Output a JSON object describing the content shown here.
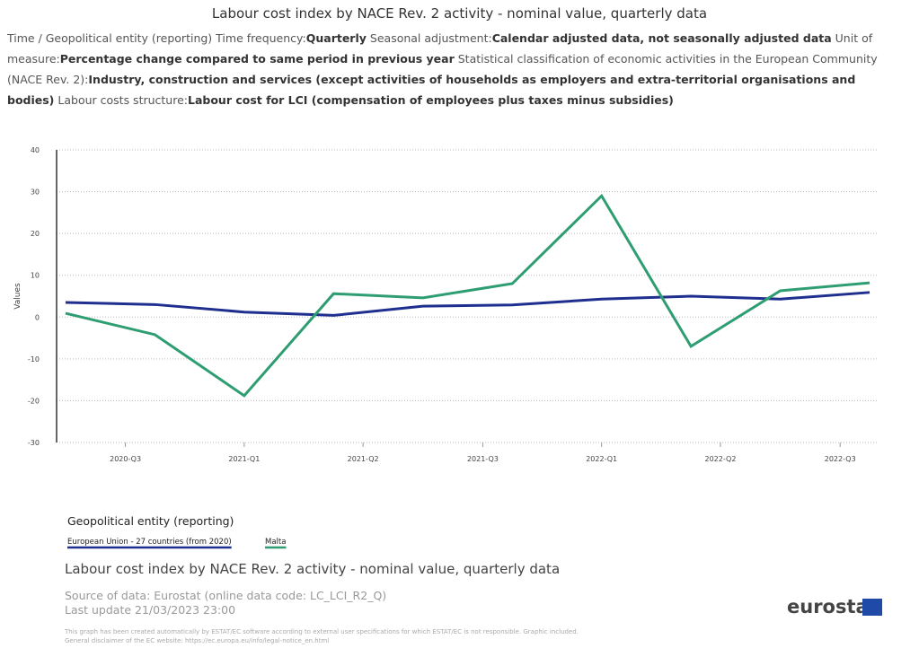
{
  "chart_data": {
    "type": "line",
    "title": "Labour cost index by NACE Rev. 2 activity - nominal value, quarterly data",
    "subtitle_lead": "Time / Geopolitical entity (reporting)",
    "filters": [
      {
        "label": "Time frequency:",
        "value": "Quarterly"
      },
      {
        "label": "Seasonal adjustment:",
        "value": "Calendar adjusted data, not seasonally adjusted data"
      },
      {
        "label": "Unit of measure:",
        "value": "Percentage change compared to same period in previous year"
      },
      {
        "label": "Statistical classification of economic activities in the European Community (NACE Rev. 2):",
        "value": "Industry, construction and services (except activities of households as employers and extra-territorial organisations and bodies)"
      },
      {
        "label": "Labour costs structure:",
        "value": "Labour cost for LCI (compensation of employees plus taxes minus subsidies)"
      }
    ],
    "y_label": "Values",
    "x": [
      0,
      1,
      2,
      3,
      4,
      5,
      6,
      7,
      8,
      9
    ],
    "xlim": [
      -0.1,
      9.1
    ],
    "xticks": [
      {
        "value": 0.67,
        "label": "2020-Q3"
      },
      {
        "value": 2,
        "label": "2021-Q1"
      },
      {
        "value": 3.33,
        "label": "2021-Q2"
      },
      {
        "value": 4.67,
        "label": "2021-Q3"
      },
      {
        "value": 6,
        "label": "2022-Q1"
      },
      {
        "value": 7.33,
        "label": "2022-Q2"
      },
      {
        "value": 8.67,
        "label": "2022-Q3"
      }
    ],
    "ylim": [
      -30,
      40
    ],
    "yticks": [
      40,
      30,
      20,
      10,
      0,
      -10,
      -20,
      -30
    ],
    "grid": true,
    "legend_title": "Geopolitical entity (reporting)",
    "series": [
      {
        "name": "European Union - 27 countries (from 2020)",
        "color": "#1f2f8f",
        "values": [
          3.5,
          3.0,
          1.2,
          0.4,
          2.6,
          2.9,
          4.3,
          5.0,
          4.3,
          5.9
        ]
      },
      {
        "name": "Malta",
        "color": "#2e9e72",
        "values": [
          0.9,
          -4.2,
          -18.8,
          5.6,
          4.6,
          8.0,
          29.0,
          -7.0,
          6.3,
          8.2
        ]
      }
    ],
    "footer_title": "Labour cost index by NACE Rev. 2 activity - nominal value, quarterly data",
    "source": "Source of data: Eurostat (online data code: LC_LCI_R2_Q)",
    "last_update": "Last update 21/03/2023 23:00",
    "disclaimer": [
      "This graph has been created automatically by ESTAT/EC software according to external user specifications for which ESTAT/EC is not responsible. Graphic included.",
      "General disclaimer of the EC website: https://ec.europa.eu/info/legal-notice_en.html"
    ],
    "logo": "eurostat"
  }
}
